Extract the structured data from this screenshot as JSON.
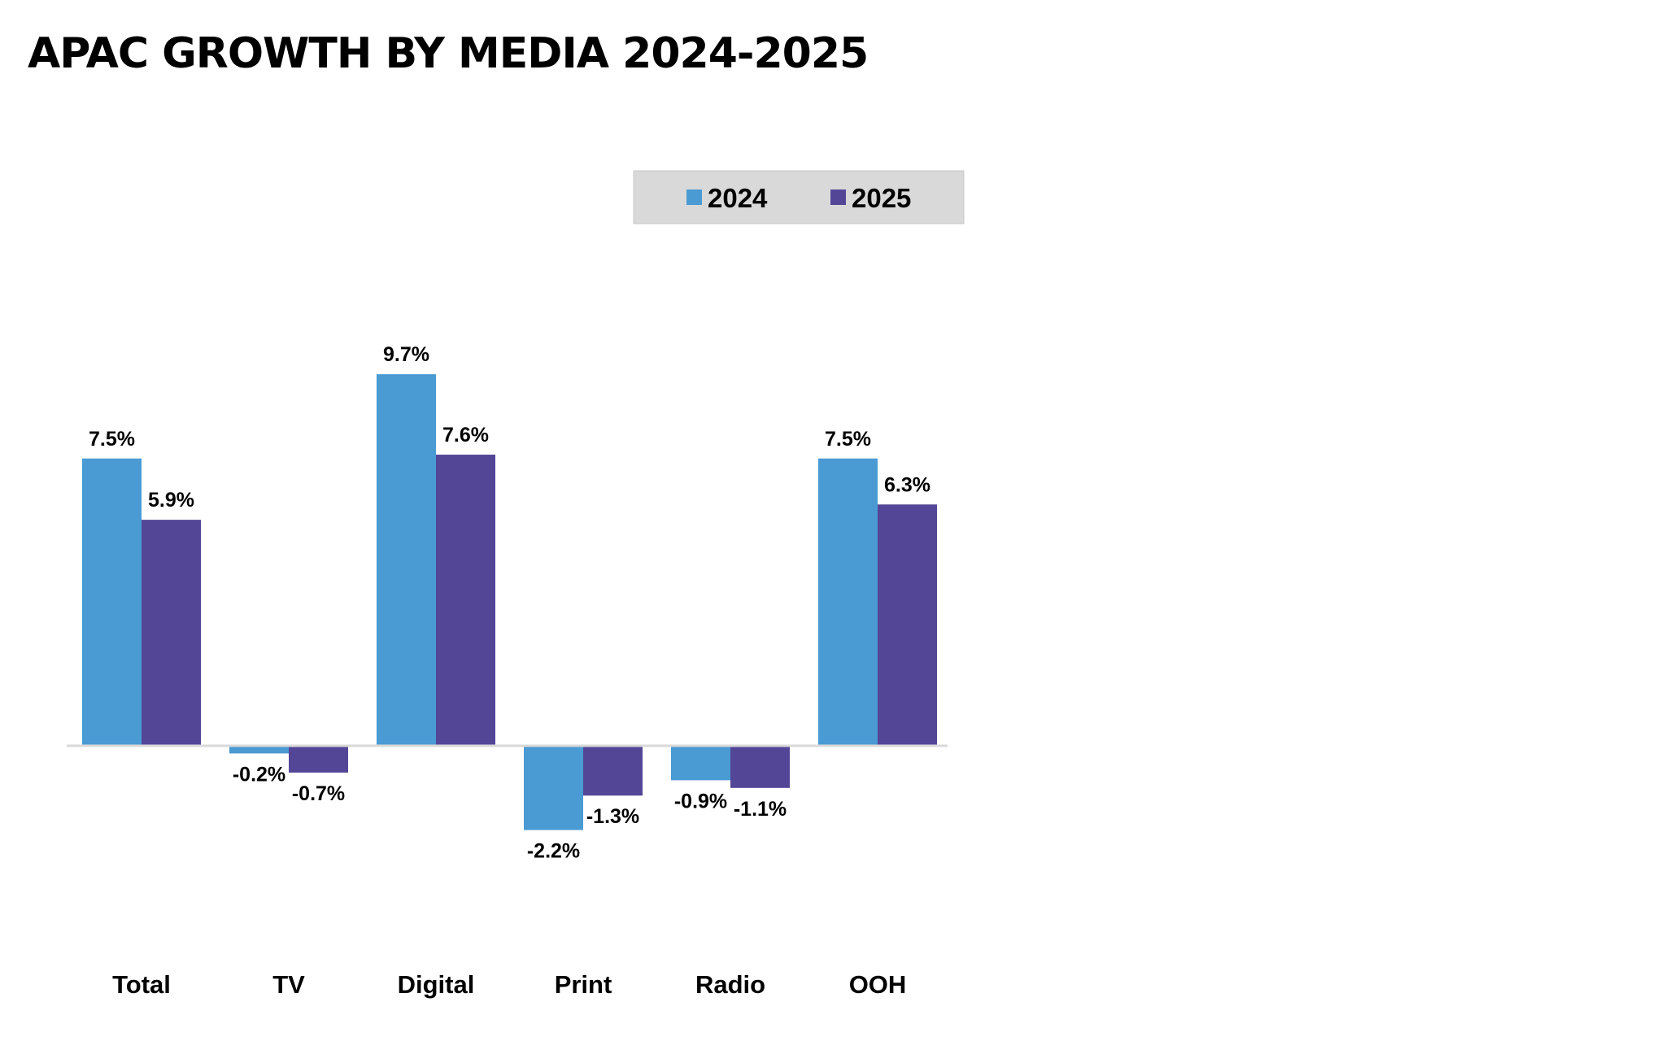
{
  "chart_data": {
    "type": "bar",
    "title": "APAC GROWTH BY MEDIA 2024-2025",
    "categories": [
      "Total",
      "TV",
      "Digital",
      "Print",
      "Radio",
      "OOH"
    ],
    "series": [
      {
        "name": "2024",
        "color": "#4A9AD3",
        "values": [
          7.5,
          -0.2,
          9.7,
          -2.2,
          -0.9,
          7.5
        ],
        "labels": [
          "7.5%",
          "-0.2%",
          "9.7%",
          "-2.2%",
          "-0.9%",
          "7.5%"
        ]
      },
      {
        "name": "2025",
        "color": "#534697",
        "values": [
          5.9,
          -0.7,
          7.6,
          -1.3,
          -1.1,
          6.3
        ],
        "labels": [
          "5.9%",
          "-0.7%",
          "7.6%",
          "-1.3%",
          "-1.1%",
          "6.3%"
        ]
      }
    ],
    "xlabel": "",
    "ylabel": "",
    "ylim": [
      -2.2,
      9.7
    ],
    "grid": false,
    "legend": "top-right",
    "legend_background": "#D9D9D9",
    "axis_color": "#D9D9D9"
  }
}
